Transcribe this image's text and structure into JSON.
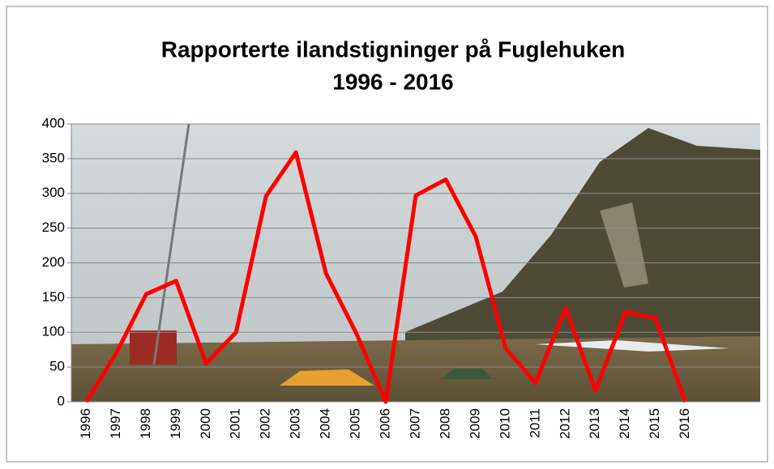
{
  "chart_data": {
    "type": "line",
    "title": [
      "Rapporterte ilandstigninger på Fuglehuken",
      "1996 - 2016"
    ],
    "categories": [
      "1996",
      "1997",
      "1998",
      "1999",
      "2000",
      "2001",
      "2002",
      "2003",
      "2004",
      "2005",
      "2006",
      "2007",
      "2008",
      "2009",
      "2010",
      "2011",
      "2012",
      "2013",
      "2014",
      "2015",
      "2016",
      null,
      null
    ],
    "values": [
      0,
      70,
      155,
      174,
      55,
      100,
      296,
      359,
      185,
      100,
      0,
      297,
      320,
      238,
      77,
      27,
      135,
      16,
      129,
      120,
      0,
      null,
      null
    ],
    "color": "#ff0000",
    "ylim": [
      0,
      400
    ],
    "yticks": [
      0,
      50,
      100,
      150,
      200,
      250,
      300,
      350,
      400
    ],
    "grid": true
  }
}
